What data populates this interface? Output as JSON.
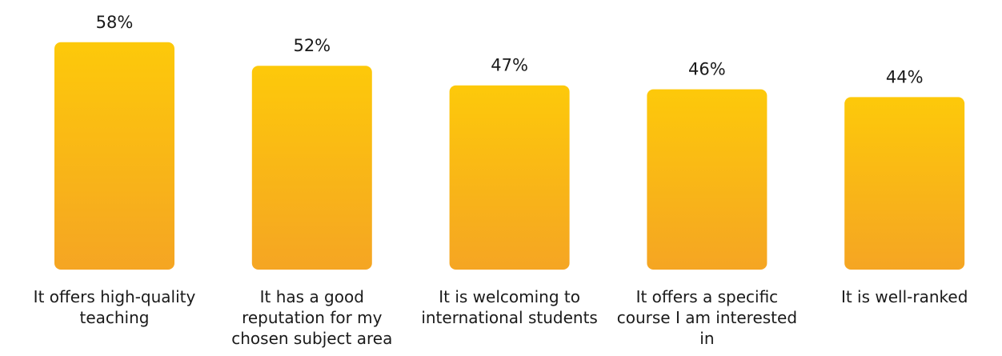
{
  "chart_data": {
    "type": "bar",
    "categories": [
      "It offers high-quality teaching",
      "It has a good reputation for my chosen subject area",
      "It is welcoming to international students",
      "It offers a specific course I am interested in",
      "It is well-ranked"
    ],
    "values": [
      58,
      52,
      47,
      46,
      44
    ],
    "value_labels": [
      "58%",
      "52%",
      "47%",
      "46%",
      "44%"
    ],
    "color": [
      "#fdc90a",
      "#f5a523"
    ]
  }
}
